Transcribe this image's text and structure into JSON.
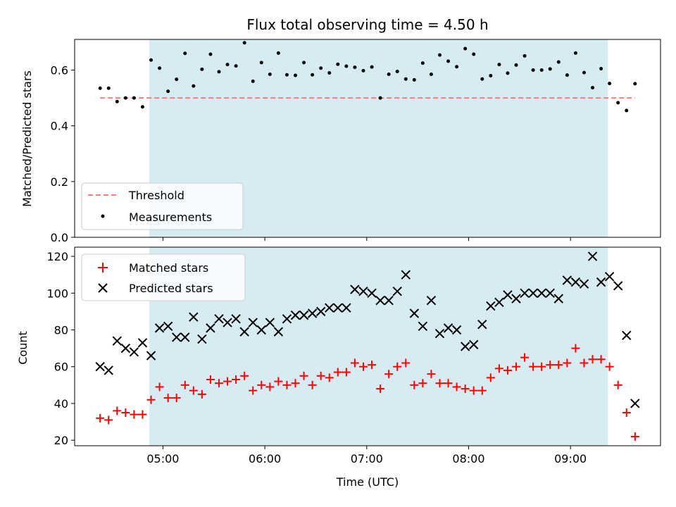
{
  "title": "Flux total observing time = 4.50 h",
  "colors": {
    "highlight": "#add8e6",
    "threshold": "#f08080",
    "measurement": "#000000",
    "matched": "#ff0000",
    "predicted": "#000000"
  },
  "chart_data": [
    {
      "type": "scatter",
      "panel": "top",
      "ylabel": "Matched/Predicted stars",
      "xlabel": "",
      "ylim": [
        0,
        0.71
      ],
      "yticks": [
        0.0,
        0.2,
        0.4,
        0.6
      ],
      "ytick_labels": [
        "0.0",
        "0.2",
        "0.4",
        "0.6"
      ],
      "xlim": [
        "04:08",
        "09:53"
      ],
      "highlight_span": [
        "04:52",
        "09:22"
      ],
      "threshold": 0.5,
      "legend": {
        "position": "lower-left",
        "entries": [
          "Threshold",
          "Measurements"
        ]
      },
      "series": [
        {
          "name": "Measurements",
          "marker": "dot",
          "x": [
            "04:23",
            "04:28",
            "04:33",
            "04:38",
            "04:43",
            "04:48",
            "04:53",
            "04:58",
            "05:03",
            "05:08",
            "05:13",
            "05:18",
            "05:23",
            "05:28",
            "05:33",
            "05:38",
            "05:43",
            "05:48",
            "05:53",
            "05:58",
            "06:03",
            "06:08",
            "06:13",
            "06:18",
            "06:23",
            "06:28",
            "06:33",
            "06:38",
            "06:43",
            "06:48",
            "06:53",
            "06:58",
            "07:03",
            "07:08",
            "07:13",
            "07:18",
            "07:23",
            "07:28",
            "07:33",
            "07:38",
            "07:43",
            "07:48",
            "07:53",
            "07:58",
            "08:03",
            "08:08",
            "08:13",
            "08:18",
            "08:23",
            "08:28",
            "08:33",
            "08:38",
            "08:43",
            "08:48",
            "08:53",
            "08:58",
            "09:03",
            "09:08",
            "09:13",
            "09:18",
            "09:23",
            "09:28",
            "09:33",
            "09:38"
          ],
          "y": [
            0.535,
            0.535,
            0.487,
            0.5,
            0.5,
            0.468,
            0.636,
            0.607,
            0.524,
            0.567,
            0.66,
            0.543,
            0.603,
            0.657,
            0.594,
            0.62,
            0.615,
            0.698,
            0.56,
            0.627,
            0.585,
            0.661,
            0.583,
            0.581,
            0.627,
            0.583,
            0.607,
            0.59,
            0.621,
            0.614,
            0.61,
            0.598,
            0.611,
            0.5,
            0.585,
            0.595,
            0.568,
            0.565,
            0.625,
            0.585,
            0.654,
            0.632,
            0.612,
            0.677,
            0.657,
            0.568,
            0.58,
            0.62,
            0.589,
            0.618,
            0.651,
            0.6,
            0.6,
            0.604,
            0.629,
            0.582,
            0.661,
            0.591,
            0.537,
            0.605,
            0.552,
            0.483,
            0.455,
            0.551
          ]
        }
      ]
    },
    {
      "type": "scatter",
      "panel": "bottom",
      "ylabel": "Count",
      "xlabel": "Time (UTC)",
      "ylim": [
        17,
        125
      ],
      "yticks": [
        20,
        40,
        60,
        80,
        100,
        120
      ],
      "ytick_labels": [
        "20",
        "40",
        "60",
        "80",
        "100",
        "120"
      ],
      "xlim": [
        "04:08",
        "09:53"
      ],
      "xticks": [
        "05:00",
        "06:00",
        "07:00",
        "08:00",
        "09:00"
      ],
      "xtick_labels": [
        "05:00",
        "06:00",
        "07:00",
        "08:00",
        "09:00"
      ],
      "highlight_span": [
        "04:52",
        "09:22"
      ],
      "legend": {
        "position": "upper-left",
        "entries": [
          "Matched stars",
          "Predicted stars"
        ]
      },
      "series": [
        {
          "name": "Matched stars",
          "marker": "plus",
          "x": [
            "04:23",
            "04:28",
            "04:33",
            "04:38",
            "04:43",
            "04:48",
            "04:53",
            "04:58",
            "05:03",
            "05:08",
            "05:13",
            "05:18",
            "05:23",
            "05:28",
            "05:33",
            "05:38",
            "05:43",
            "05:48",
            "05:53",
            "05:58",
            "06:03",
            "06:08",
            "06:13",
            "06:18",
            "06:23",
            "06:28",
            "06:33",
            "06:38",
            "06:43",
            "06:48",
            "06:53",
            "06:58",
            "07:03",
            "07:08",
            "07:13",
            "07:18",
            "07:23",
            "07:28",
            "07:33",
            "07:38",
            "07:43",
            "07:48",
            "07:53",
            "07:58",
            "08:03",
            "08:08",
            "08:13",
            "08:18",
            "08:23",
            "08:28",
            "08:33",
            "08:38",
            "08:43",
            "08:48",
            "08:53",
            "08:58",
            "09:03",
            "09:08",
            "09:13",
            "09:18",
            "09:23",
            "09:28",
            "09:33",
            "09:38"
          ],
          "y": [
            32,
            31,
            36,
            35,
            34,
            34,
            42,
            49,
            43,
            43,
            50,
            47,
            45,
            53,
            51,
            52,
            53,
            55,
            47,
            50,
            49,
            52,
            50,
            51,
            55,
            50,
            55,
            54,
            57,
            57,
            62,
            60,
            61,
            48,
            56,
            60,
            62,
            50,
            51,
            56,
            51,
            51,
            49,
            48,
            47,
            47,
            54,
            59,
            58,
            60,
            65,
            60,
            60,
            61,
            61,
            62,
            70,
            62,
            64,
            64,
            60,
            50,
            35,
            22
          ]
        },
        {
          "name": "Predicted stars",
          "marker": "x",
          "x": [
            "04:23",
            "04:28",
            "04:33",
            "04:38",
            "04:43",
            "04:48",
            "04:53",
            "04:58",
            "05:03",
            "05:08",
            "05:13",
            "05:18",
            "05:23",
            "05:28",
            "05:33",
            "05:38",
            "05:43",
            "05:48",
            "05:53",
            "05:58",
            "06:03",
            "06:08",
            "06:13",
            "06:18",
            "06:23",
            "06:28",
            "06:33",
            "06:38",
            "06:43",
            "06:48",
            "06:53",
            "06:58",
            "07:03",
            "07:08",
            "07:13",
            "07:18",
            "07:23",
            "07:28",
            "07:33",
            "07:38",
            "07:43",
            "07:48",
            "07:53",
            "07:58",
            "08:03",
            "08:08",
            "08:13",
            "08:18",
            "08:23",
            "08:28",
            "08:33",
            "08:38",
            "08:43",
            "08:48",
            "08:53",
            "08:58",
            "09:03",
            "09:08",
            "09:13",
            "09:18",
            "09:23",
            "09:28",
            "09:33",
            "09:38"
          ],
          "y": [
            60,
            58,
            74,
            70,
            68,
            73,
            66,
            81,
            82,
            76,
            76,
            87,
            75,
            81,
            86,
            84,
            86,
            79,
            84,
            80,
            84,
            79,
            86,
            88,
            88,
            89,
            90,
            92,
            92,
            92,
            102,
            101,
            100,
            96,
            96,
            101,
            110,
            89,
            82,
            96,
            78,
            81,
            80,
            71,
            72,
            83,
            93,
            95,
            99,
            97,
            100,
            100,
            100,
            100,
            97,
            107,
            106,
            105,
            120,
            106,
            109,
            104,
            77,
            40
          ]
        }
      ]
    }
  ]
}
